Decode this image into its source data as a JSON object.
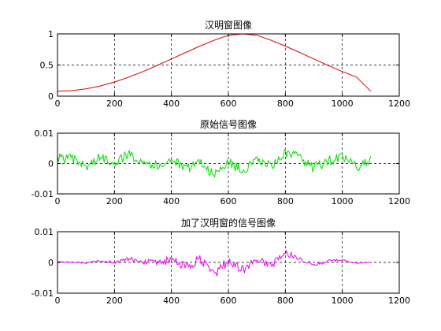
{
  "chart_data": [
    {
      "type": "line",
      "title": "汉明窗图像",
      "xlabel": "",
      "ylabel": "",
      "xlim": [
        0,
        1200
      ],
      "ylim": [
        0,
        1
      ],
      "xticks": [
        0,
        200,
        400,
        600,
        800,
        1000,
        1200
      ],
      "xtick_labels": [
        "0",
        "200",
        "400",
        "600",
        "800",
        "1000",
        "1200"
      ],
      "yticks": [
        0,
        0.5,
        1
      ],
      "ytick_labels": [
        "0",
        "0.5",
        "1"
      ],
      "grid": true,
      "series": [
        {
          "color": "#e00000",
          "x": [
            0,
            50,
            100,
            150,
            200,
            250,
            300,
            350,
            400,
            450,
            500,
            550,
            600,
            650,
            700,
            750,
            800,
            850,
            900,
            950,
            1000,
            1050,
            1100
          ],
          "values": [
            0.08,
            0.088,
            0.117,
            0.163,
            0.227,
            0.305,
            0.395,
            0.494,
            0.598,
            0.703,
            0.804,
            0.898,
            0.979,
            1.0,
            0.979,
            0.898,
            0.804,
            0.703,
            0.598,
            0.494,
            0.395,
            0.305,
            0.08
          ]
        }
      ]
    },
    {
      "type": "line",
      "title": "原始信号图像",
      "xlabel": "",
      "ylabel": "",
      "xlim": [
        0,
        1200
      ],
      "ylim": [
        -0.01,
        0.01
      ],
      "xticks": [
        0,
        200,
        400,
        600,
        800,
        1000,
        1200
      ],
      "xtick_labels": [
        "0",
        "200",
        "400",
        "600",
        "800",
        "1000",
        "1200"
      ],
      "yticks": [
        -0.01,
        0,
        0.01
      ],
      "ytick_labels": [
        "-0.01",
        "0",
        "0.01"
      ],
      "grid": true,
      "series": [
        {
          "color": "#00dd00",
          "x": [
            0,
            50,
            100,
            150,
            200,
            250,
            300,
            350,
            400,
            450,
            500,
            550,
            600,
            650,
            700,
            750,
            800,
            850,
            900,
            950,
            1000,
            1050,
            1100
          ],
          "values": [
            0.002,
            0.0015,
            -0.001,
            0.002,
            0.0005,
            0.003,
            0.001,
            -0.001,
            0.0015,
            -0.002,
            0.001,
            -0.004,
            0.0005,
            -0.0025,
            0.001,
            -0.001,
            0.0035,
            0.002,
            -0.0015,
            0.001,
            0.002,
            -0.001,
            0.001
          ]
        }
      ]
    },
    {
      "type": "line",
      "title": "加了汉明窗的信号图像",
      "xlabel": "",
      "ylabel": "",
      "xlim": [
        0,
        1200
      ],
      "ylim": [
        -0.01,
        0.01
      ],
      "xticks": [
        0,
        200,
        400,
        600,
        800,
        1000,
        1200
      ],
      "xtick_labels": [
        "0",
        "200",
        "400",
        "600",
        "800",
        "1000",
        "1200"
      ],
      "yticks": [
        -0.01,
        0,
        0.01
      ],
      "ytick_labels": [
        "-0.01",
        "0",
        "0.01"
      ],
      "grid": true,
      "series": [
        {
          "color": "#ee00ee",
          "x": [
            0,
            50,
            100,
            150,
            200,
            250,
            300,
            350,
            400,
            450,
            500,
            550,
            600,
            650,
            700,
            750,
            800,
            850,
            900,
            950,
            1000,
            1050,
            1100
          ],
          "values": [
            0.0002,
            0.0001,
            -0.0002,
            0.0004,
            0.0001,
            0.001,
            0.0004,
            -0.0006,
            0.001,
            -0.0016,
            0.0008,
            -0.0038,
            0.0005,
            -0.0025,
            0.001,
            -0.0009,
            0.003,
            0.0014,
            -0.0009,
            0.0005,
            0.0008,
            -0.0003,
            0.0001
          ]
        }
      ]
    }
  ]
}
